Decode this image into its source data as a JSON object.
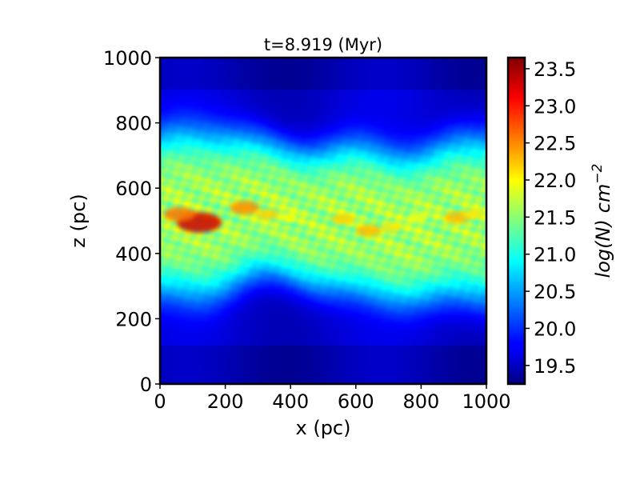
{
  "chart_data": {
    "type": "heatmap",
    "title": "t=8.919 (Myr)",
    "xlabel": "x (pc)",
    "ylabel": "z (pc)",
    "xlim": [
      0,
      1000
    ],
    "ylim": [
      0,
      1000
    ],
    "x_ticks": [
      0,
      200,
      400,
      600,
      800,
      1000
    ],
    "y_ticks": [
      0,
      200,
      400,
      600,
      800,
      1000
    ],
    "colorbar": {
      "label_main": "log(N)",
      "label_unit": "cm",
      "label_exponent": "−2",
      "range": [
        19.25,
        23.65
      ],
      "ticks": [
        "19.5",
        "20.0",
        "20.5",
        "21.0",
        "21.5",
        "22.0",
        "22.5",
        "23.0",
        "23.5"
      ],
      "colormap": "jet"
    },
    "field_profile": {
      "background_low": 19.6,
      "disk_midplane_z": 510,
      "disk_core_value": 21.6,
      "disk_halfwidth_pc": 240
    },
    "dense_clumps": [
      {
        "x": 120,
        "z": 495,
        "value": 23.3
      },
      {
        "x": 60,
        "z": 520,
        "value": 22.6
      },
      {
        "x": 260,
        "z": 540,
        "value": 22.5
      },
      {
        "x": 330,
        "z": 520,
        "value": 22.2
      },
      {
        "x": 390,
        "z": 510,
        "value": 22.0
      },
      {
        "x": 560,
        "z": 505,
        "value": 22.2
      },
      {
        "x": 640,
        "z": 470,
        "value": 22.3
      },
      {
        "x": 710,
        "z": 480,
        "value": 22.1
      },
      {
        "x": 790,
        "z": 510,
        "value": 22.0
      },
      {
        "x": 910,
        "z": 510,
        "value": 22.3
      },
      {
        "x": 960,
        "z": 520,
        "value": 22.1
      }
    ]
  }
}
